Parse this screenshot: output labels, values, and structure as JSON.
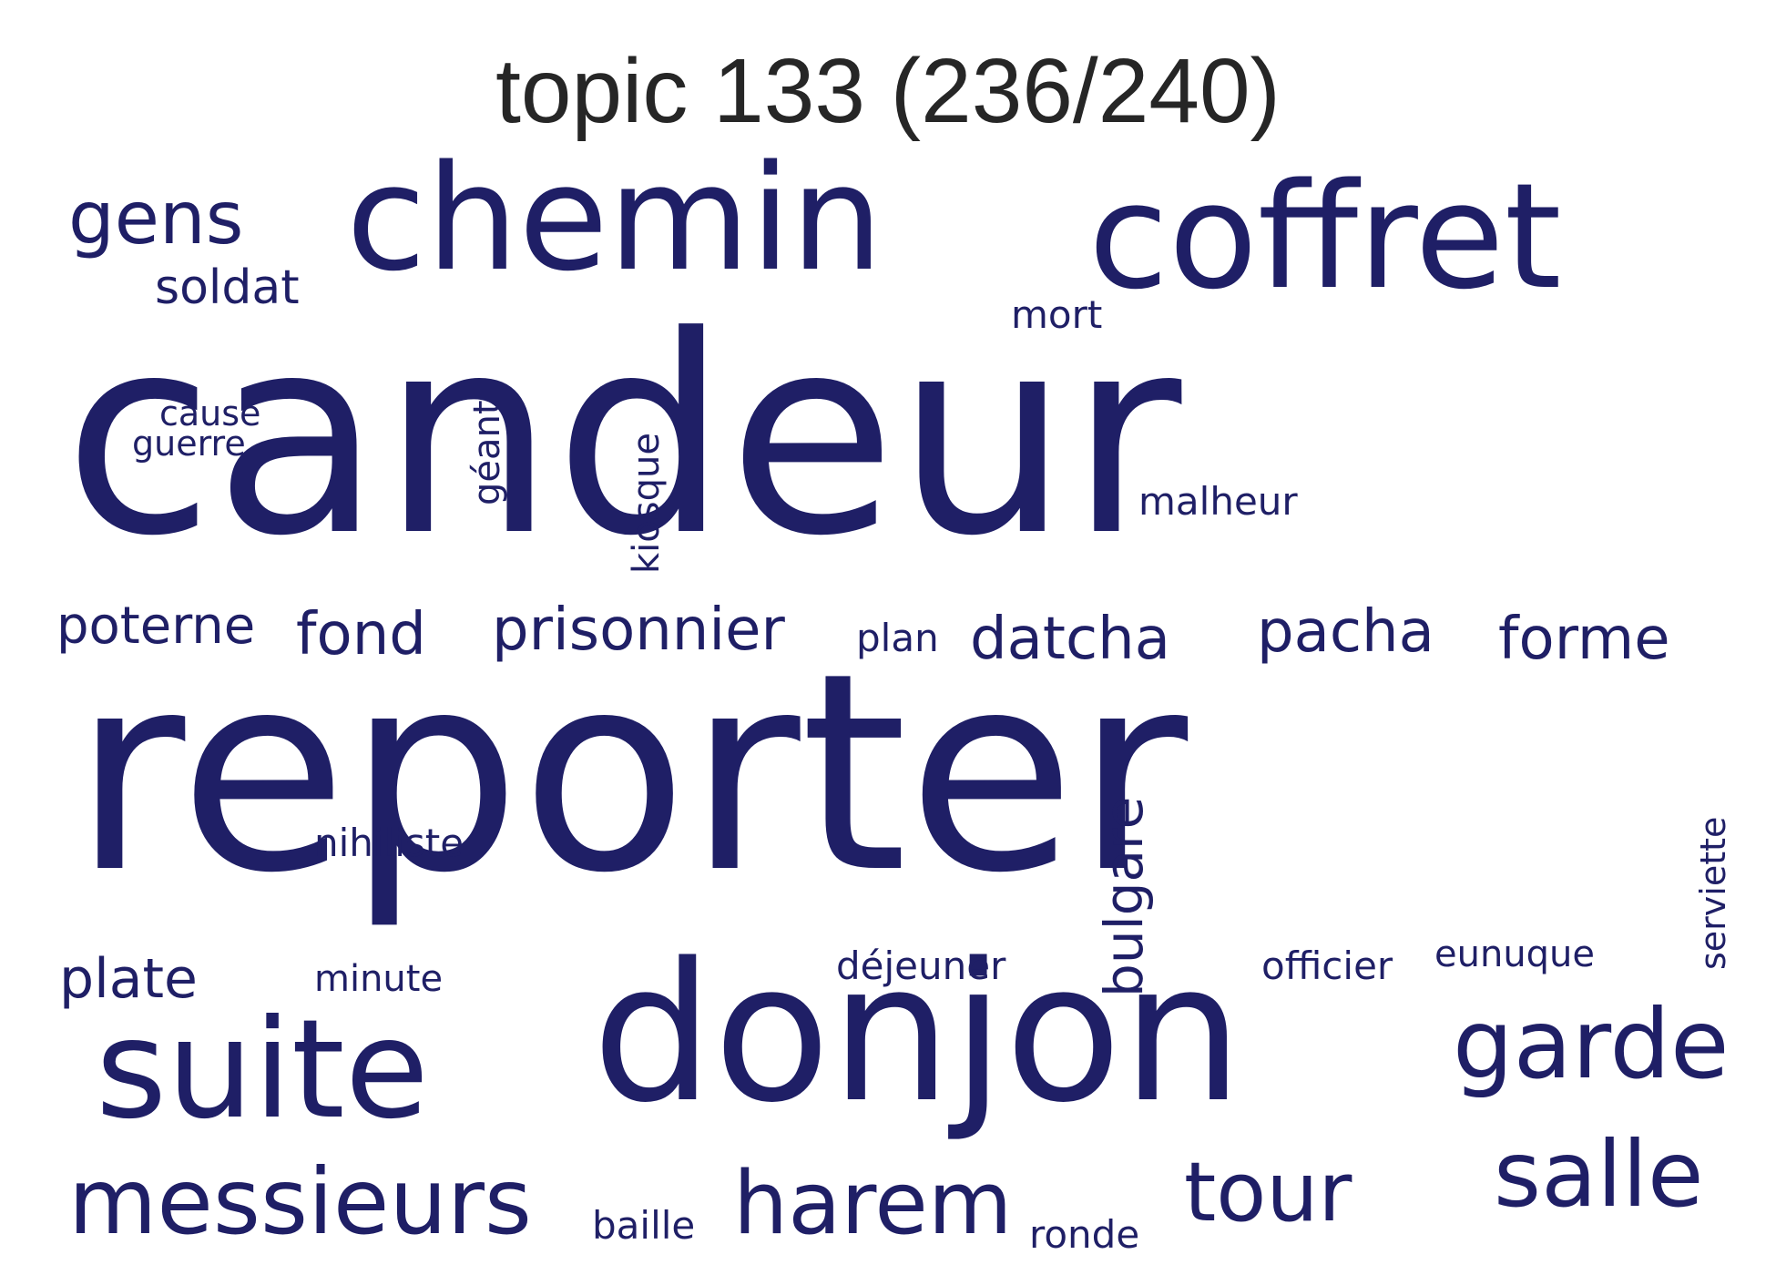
{
  "title": "topic 133 (236/240)",
  "word_color": "#1f1f66",
  "words": [
    {
      "text": "candeur"
    },
    {
      "text": "reporter"
    },
    {
      "text": "donjon"
    },
    {
      "text": "coffret"
    },
    {
      "text": "chemin"
    },
    {
      "text": "suite"
    },
    {
      "text": "messieurs"
    },
    {
      "text": "harem"
    },
    {
      "text": "garde"
    },
    {
      "text": "salle"
    },
    {
      "text": "tour"
    },
    {
      "text": "gens"
    },
    {
      "text": "prisonnier"
    },
    {
      "text": "datcha"
    },
    {
      "text": "pacha"
    },
    {
      "text": "forme"
    },
    {
      "text": "fond"
    },
    {
      "text": "poterne"
    },
    {
      "text": "plate"
    },
    {
      "text": "soldat"
    },
    {
      "text": "bulgare"
    },
    {
      "text": "mort"
    },
    {
      "text": "malheur"
    },
    {
      "text": "cause"
    },
    {
      "text": "guerre"
    },
    {
      "text": "géant"
    },
    {
      "text": "kiosque"
    },
    {
      "text": "plan"
    },
    {
      "text": "nihiliste"
    },
    {
      "text": "minute"
    },
    {
      "text": "déjeuner"
    },
    {
      "text": "officier"
    },
    {
      "text": "eunuque"
    },
    {
      "text": "serviette"
    },
    {
      "text": "baille"
    },
    {
      "text": "ronde"
    }
  ]
}
